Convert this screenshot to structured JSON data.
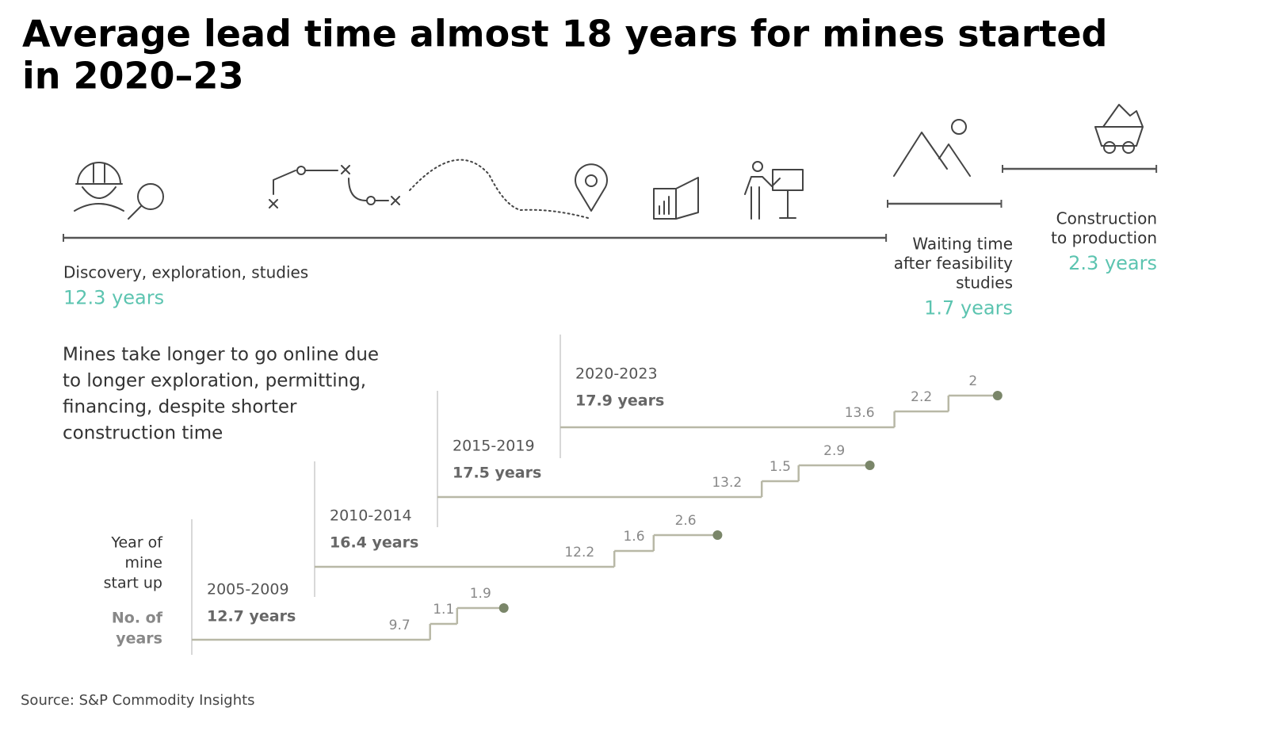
{
  "chart_data": {
    "type": "step",
    "title": [
      "Average lead time almost 18 years for mines started",
      "in 2020–23"
    ],
    "source": "Source: S&P Commodity Insights",
    "phases": [
      {
        "name": [
          "Discovery, exploration, studies"
        ],
        "value": 12.3,
        "value_label": "12.3 years"
      },
      {
        "name": [
          "Waiting time",
          "after feasibility",
          "studies"
        ],
        "value": 1.7,
        "value_label": "1.7 years"
      },
      {
        "name": [
          "Construction",
          "to production"
        ],
        "value": 2.3,
        "value_label": "2.3 years"
      }
    ],
    "note": [
      "Mines take longer to go online due",
      "to longer exploration, permitting,",
      "financing, despite shorter",
      "construction time"
    ],
    "row_label": [
      "Year of",
      "mine",
      "start up"
    ],
    "value_label": [
      "No. of",
      "years"
    ],
    "series": [
      {
        "name": "2005-2009",
        "total": "12.7 years",
        "values": [
          9.7,
          1.1,
          1.9
        ]
      },
      {
        "name": "2010-2014",
        "total": "16.4 years",
        "values": [
          12.2,
          1.6,
          2.6
        ]
      },
      {
        "name": "2015-2019",
        "total": "17.5 years",
        "values": [
          13.2,
          1.5,
          2.9
        ]
      },
      {
        "name": "2020-2023",
        "total": "17.9 years",
        "values": [
          13.6,
          2.2,
          2.0
        ]
      }
    ],
    "line_color": "#b8b8a6",
    "dot_color": "#7a8669",
    "accent_color": "#5cc4b0"
  }
}
